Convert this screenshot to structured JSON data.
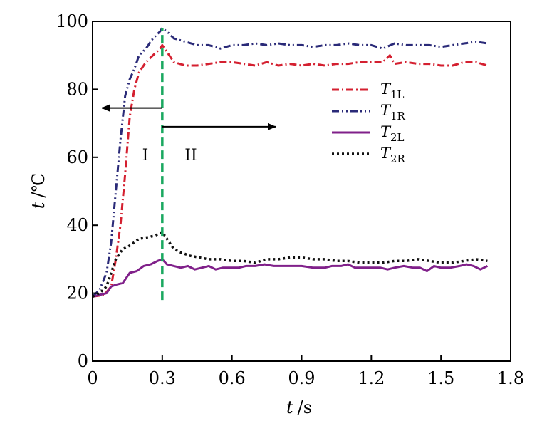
{
  "chart_data": {
    "type": "line",
    "xlabel_var": "t",
    "xlabel_unit": "/s",
    "ylabel_var": "t",
    "ylabel_unit": "/℃",
    "xlim": [
      0,
      1.8
    ],
    "ylim": [
      0,
      100
    ],
    "x_ticks": [
      "0",
      "0.3",
      "0.6",
      "0.9",
      "1.2",
      "1.5",
      "1.8"
    ],
    "x_tick_values": [
      0,
      0.3,
      0.6,
      0.9,
      1.2,
      1.5,
      1.8
    ],
    "y_ticks": [
      "0",
      "20",
      "40",
      "60",
      "80",
      "100"
    ],
    "y_tick_values": [
      0,
      20,
      40,
      60,
      80,
      100
    ],
    "grid": false,
    "legend_position": "upper-right",
    "series": [
      {
        "name": "T1L",
        "name_main": "T",
        "name_sub": "1L",
        "color": "#d42030",
        "dash": "dash-dot",
        "x": [
          0,
          0.05,
          0.08,
          0.1,
          0.12,
          0.14,
          0.16,
          0.18,
          0.2,
          0.23,
          0.26,
          0.29,
          0.3,
          0.32,
          0.35,
          0.4,
          0.45,
          0.5,
          0.55,
          0.6,
          0.65,
          0.7,
          0.75,
          0.8,
          0.85,
          0.9,
          0.95,
          1.0,
          1.05,
          1.1,
          1.15,
          1.2,
          1.25,
          1.28,
          1.3,
          1.35,
          1.4,
          1.45,
          1.5,
          1.55,
          1.6,
          1.65,
          1.7
        ],
        "y": [
          19,
          19.5,
          22,
          30,
          40,
          55,
          72,
          80,
          85,
          88,
          90,
          92,
          93,
          91,
          88,
          87,
          87,
          87.5,
          88,
          88,
          87.5,
          87,
          88,
          87,
          87.5,
          87,
          87.5,
          87,
          87.5,
          87.5,
          88,
          88,
          88,
          90,
          87.5,
          88,
          87.5,
          87.5,
          87,
          87,
          88,
          88,
          87
        ]
      },
      {
        "name": "T1R",
        "name_main": "T",
        "name_sub": "1R",
        "color": "#2a2a78",
        "dash": "dash-dot-dot",
        "x": [
          0,
          0.03,
          0.06,
          0.08,
          0.1,
          0.12,
          0.14,
          0.16,
          0.18,
          0.2,
          0.23,
          0.26,
          0.29,
          0.3,
          0.32,
          0.35,
          0.4,
          0.45,
          0.5,
          0.55,
          0.6,
          0.65,
          0.7,
          0.75,
          0.8,
          0.85,
          0.9,
          0.95,
          1.0,
          1.05,
          1.1,
          1.15,
          1.2,
          1.25,
          1.3,
          1.35,
          1.4,
          1.45,
          1.5,
          1.55,
          1.6,
          1.65,
          1.7
        ],
        "y": [
          19,
          21,
          26,
          35,
          50,
          65,
          78,
          83,
          86,
          90,
          92,
          95,
          97,
          98,
          97,
          95,
          94,
          93,
          93,
          92,
          93,
          93,
          93.5,
          93,
          93.5,
          93,
          93,
          92.5,
          93,
          93,
          93.5,
          93,
          93,
          92,
          93.5,
          93,
          93,
          93,
          92.5,
          93,
          93.5,
          94,
          93.5
        ]
      },
      {
        "name": "T2L",
        "name_main": "T",
        "name_sub": "2L",
        "color": "#80208a",
        "dash": "solid",
        "x": [
          0,
          0.03,
          0.06,
          0.08,
          0.1,
          0.13,
          0.16,
          0.19,
          0.22,
          0.25,
          0.28,
          0.3,
          0.32,
          0.35,
          0.38,
          0.41,
          0.44,
          0.47,
          0.5,
          0.53,
          0.56,
          0.6,
          0.63,
          0.66,
          0.7,
          0.74,
          0.78,
          0.82,
          0.86,
          0.9,
          0.95,
          1.0,
          1.03,
          1.07,
          1.1,
          1.13,
          1.17,
          1.2,
          1.24,
          1.27,
          1.3,
          1.34,
          1.38,
          1.41,
          1.44,
          1.47,
          1.5,
          1.54,
          1.58,
          1.61,
          1.64,
          1.67,
          1.7
        ],
        "y": [
          19,
          19.5,
          20,
          22,
          22.5,
          23,
          26,
          26.5,
          28,
          28.5,
          29.5,
          30,
          28.5,
          28,
          27.5,
          28,
          27,
          27.5,
          28,
          27,
          27.5,
          27.5,
          27.5,
          28,
          28,
          28.5,
          28,
          28,
          28,
          28,
          27.5,
          27.5,
          28,
          28,
          28.5,
          27.5,
          27.5,
          27.5,
          27.5,
          27,
          27.5,
          28,
          27.5,
          27.5,
          26.5,
          28,
          27.5,
          27.5,
          28,
          28.5,
          28,
          27,
          28
        ]
      },
      {
        "name": "T2R",
        "name_main": "T",
        "name_sub": "2R",
        "color": "#111111",
        "dash": "dotted",
        "x": [
          0,
          0.03,
          0.06,
          0.08,
          0.1,
          0.13,
          0.16,
          0.2,
          0.24,
          0.27,
          0.3,
          0.32,
          0.35,
          0.38,
          0.42,
          0.46,
          0.5,
          0.55,
          0.6,
          0.65,
          0.7,
          0.75,
          0.8,
          0.85,
          0.9,
          0.95,
          1.0,
          1.05,
          1.1,
          1.15,
          1.2,
          1.25,
          1.3,
          1.35,
          1.4,
          1.45,
          1.5,
          1.55,
          1.6,
          1.65,
          1.7
        ],
        "y": [
          19,
          20,
          22,
          26,
          30,
          33,
          34,
          36,
          36.5,
          37,
          38,
          36,
          33,
          32,
          31,
          30.5,
          30,
          30,
          29.5,
          29.5,
          29,
          30,
          30,
          30.5,
          30.5,
          30,
          30,
          29.5,
          29.5,
          29,
          29,
          29,
          29.5,
          29.5,
          30,
          29.5,
          29,
          29,
          29.5,
          30,
          29.5
        ]
      }
    ],
    "annotations": {
      "vline_x": 0.3,
      "vline_color": "#1aa860",
      "vline_y_range": [
        18,
        98
      ],
      "region_left_label": "I",
      "region_right_label": "II",
      "arrow_y": 71
    }
  }
}
